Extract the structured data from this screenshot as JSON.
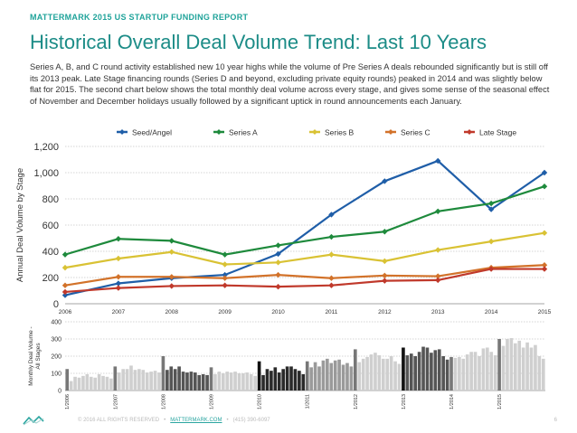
{
  "header": {
    "report_label": "MATTERMARK 2015 US STARTUP FUNDING REPORT",
    "title": "Historical Overall Deal Volume Trend: Last 10 Years",
    "intro": "Series A, B, and C round activity established new 10 year highs while the volume of Pre Series A deals rebounded significantly but is still off its 2013 peak. Late Stage financing rounds (Series D and beyond, excluding private equity rounds) peaked in 2014 and was slightly below flat for 2015. The second chart below shows the total monthly deal volume across every stage, and gives some sense of the seasonal effect of November and December holidays usually followed by a significant uptick in round announcements each January."
  },
  "chart_data": [
    {
      "type": "line",
      "ylabel": "Annual Deal Volume by Stage",
      "xlabel": "",
      "categories": [
        "2006",
        "2007",
        "2008",
        "2009",
        "2010",
        "2011",
        "2012",
        "2013",
        "2014",
        "2015"
      ],
      "ylim": [
        0,
        1200
      ],
      "yticks": [
        0,
        200,
        400,
        600,
        800,
        "1,000",
        "1,200"
      ],
      "yticks_values": [
        0,
        200,
        400,
        600,
        800,
        1000,
        1200
      ],
      "grid": true,
      "legend": "top",
      "series": [
        {
          "name": "Seed/Angel",
          "color": "#1f5ea8",
          "values": [
            65,
            155,
            195,
            220,
            380,
            680,
            935,
            1090,
            720,
            1000
          ]
        },
        {
          "name": "Series A",
          "color": "#1e8a3c",
          "values": [
            375,
            495,
            480,
            375,
            445,
            510,
            550,
            705,
            765,
            895
          ]
        },
        {
          "name": "Series B",
          "color": "#d9c234",
          "values": [
            275,
            345,
            395,
            300,
            315,
            375,
            325,
            410,
            475,
            540
          ]
        },
        {
          "name": "Series C",
          "color": "#d2722a",
          "values": [
            140,
            205,
            205,
            195,
            220,
            195,
            215,
            210,
            275,
            295
          ]
        },
        {
          "name": "Late Stage",
          "color": "#c0392b",
          "values": [
            90,
            120,
            135,
            140,
            130,
            140,
            175,
            180,
            265,
            265
          ]
        }
      ]
    },
    {
      "type": "bar",
      "ylabel": "Monthly Deal Volume - All Stages",
      "ylim": [
        0,
        400
      ],
      "yticks": [
        0,
        100,
        200,
        300,
        400
      ],
      "x_labels": [
        "1/2006",
        "1/2007",
        "1/2008",
        "1/2009",
        "1/2010",
        "1/2011",
        "1/2012",
        "1/2013",
        "1/2014",
        "1/2015"
      ],
      "year_shades": [
        "#cfcfcf",
        "#cfcfcf",
        "#555555",
        "#cfcfcf",
        "#2a2a2a",
        "#9a9a9a",
        "#cfcfcf",
        "#555555",
        "#cfcfcf"
      ],
      "values": [
        125,
        55,
        80,
        75,
        85,
        95,
        80,
        75,
        95,
        85,
        80,
        70,
        140,
        105,
        125,
        125,
        145,
        120,
        125,
        120,
        105,
        110,
        115,
        105,
        200,
        120,
        140,
        125,
        140,
        110,
        105,
        110,
        105,
        90,
        95,
        90,
        135,
        95,
        110,
        100,
        110,
        105,
        110,
        100,
        100,
        105,
        95,
        85,
        170,
        90,
        125,
        115,
        135,
        105,
        125,
        140,
        140,
        125,
        115,
        95,
        170,
        135,
        165,
        140,
        175,
        185,
        160,
        175,
        180,
        150,
        160,
        140,
        240,
        165,
        185,
        195,
        210,
        220,
        205,
        185,
        185,
        200,
        170,
        155,
        250,
        205,
        215,
        200,
        225,
        255,
        250,
        220,
        235,
        240,
        200,
        180,
        195,
        190,
        195,
        185,
        210,
        225,
        225,
        200,
        245,
        250,
        225,
        205,
        300,
        260,
        300,
        305,
        275,
        290,
        250,
        280,
        250,
        265,
        200,
        185
      ]
    }
  ],
  "footer": {
    "copyright": "© 2016 ALL RIGHTS RESERVED",
    "link": "MATTERMARK.COM",
    "phone": "(415) 390-6097",
    "page_number": "6"
  },
  "colors": {
    "teal": "#1c8c87",
    "grid": "#c8c8c8"
  }
}
